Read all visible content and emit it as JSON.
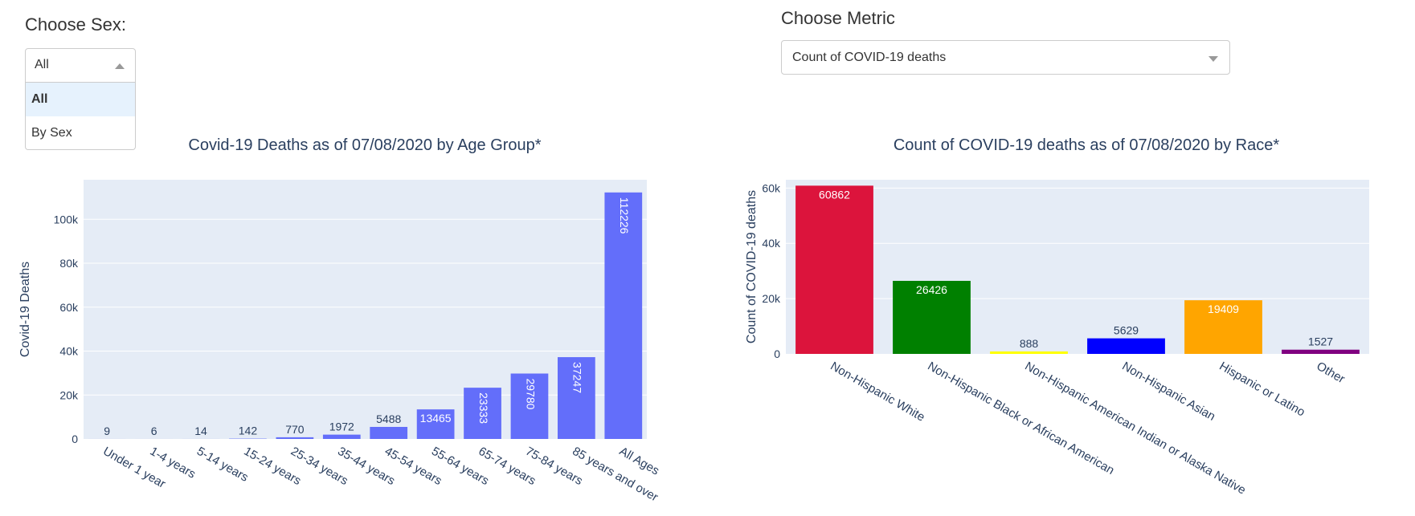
{
  "sex_selector": {
    "label": "Choose Sex:",
    "value": "All",
    "options": [
      "All",
      "By Sex"
    ],
    "highlighted": "All"
  },
  "metric_selector": {
    "label": "Choose Metric",
    "value": "Count of COVID-19 deaths"
  },
  "chart_data": [
    {
      "type": "bar",
      "title": "Covid-19 Deaths as of 07/08/2020 by Age Group*",
      "xlabel": "",
      "ylabel": "Covid-19 Deaths",
      "categories": [
        "Under 1 year",
        "1-4 years",
        "5-14 years",
        "15-24 years",
        "25-34 years",
        "35-44 years",
        "45-54 years",
        "55-64 years",
        "65-74 years",
        "75-84 years",
        "85 years and over",
        "All Ages"
      ],
      "values": [
        9,
        6,
        14,
        142,
        770,
        1972,
        5488,
        13465,
        23333,
        29780,
        37247,
        112226
      ],
      "colors": [
        "#636efa"
      ],
      "ylim": [
        0,
        118000
      ],
      "yticks": [
        0,
        20000,
        40000,
        60000,
        80000,
        100000
      ],
      "ytick_labels": [
        "0",
        "20k",
        "40k",
        "60k",
        "80k",
        "100k"
      ],
      "grid": true
    },
    {
      "type": "bar",
      "title": "Count of COVID-19 deaths as of 07/08/2020 by Race*",
      "xlabel": "",
      "ylabel": "Count of COVID-19 deaths",
      "categories": [
        "Non-Hispanic White",
        "Non-Hispanic Black or African American",
        "Non-Hispanic American Indian or Alaska Native",
        "Non-Hispanic Asian",
        "Hispanic or Latino",
        "Other"
      ],
      "values": [
        60862,
        26426,
        888,
        5629,
        19409,
        1527
      ],
      "colors": [
        "#dc143c",
        "#008000",
        "#ffff00",
        "#0000ff",
        "#ffa500",
        "#800080"
      ],
      "ylim": [
        0,
        63000
      ],
      "yticks": [
        0,
        20000,
        40000,
        60000
      ],
      "ytick_labels": [
        "0",
        "20k",
        "40k",
        "60k"
      ],
      "grid": true
    }
  ]
}
